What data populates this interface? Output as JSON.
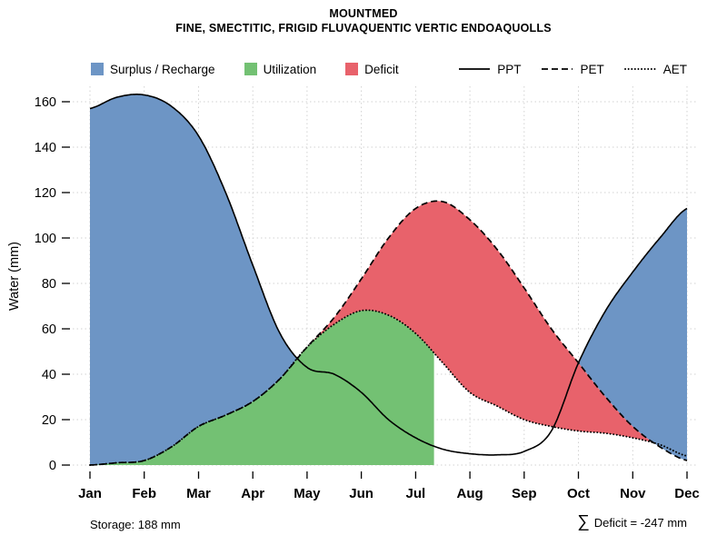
{
  "chart_data": {
    "type": "area",
    "title": "MOUNTMED",
    "subtitle": "FINE, SMECTITIC, FRIGID FLUVAQUENTIC VERTIC ENDOAQUOLLS",
    "ylabel": "Water (mm)",
    "xlabel": "",
    "ylim": [
      0,
      160
    ],
    "grid": true,
    "legend_position": "top",
    "months": [
      "Jan",
      "Feb",
      "Mar",
      "Apr",
      "May",
      "Jun",
      "Jul",
      "Aug",
      "Sep",
      "Oct",
      "Nov",
      "Dec"
    ],
    "y_ticks": [
      0,
      20,
      40,
      60,
      80,
      100,
      120,
      140,
      160
    ],
    "x": [
      1,
      1.5,
      2,
      2.5,
      3,
      3.5,
      4,
      4.5,
      5,
      5.5,
      6,
      6.5,
      7,
      7.5,
      8,
      8.5,
      9,
      9.5,
      10,
      10.5,
      11,
      11.5,
      12
    ],
    "series": [
      {
        "name": "PPT",
        "style": "solid",
        "values": [
          157,
          162,
          163,
          158,
          145,
          120,
          88,
          58,
          43,
          40,
          32,
          20,
          12,
          7,
          5,
          4.5,
          6,
          15,
          45,
          68,
          85,
          100,
          113
        ]
      },
      {
        "name": "PET",
        "style": "dashed",
        "values": [
          0,
          1,
          2,
          8,
          17,
          22,
          28,
          38,
          52,
          65,
          82,
          100,
          113,
          116,
          108,
          95,
          78,
          60,
          45,
          30,
          17,
          8,
          2
        ]
      },
      {
        "name": "AET",
        "style": "dotted",
        "values": [
          0,
          1,
          2,
          8,
          17,
          22,
          28,
          38,
          52,
          62,
          68,
          66,
          58,
          45,
          32,
          26,
          20,
          17,
          15,
          14,
          12,
          9,
          4
        ]
      }
    ],
    "areas": [
      {
        "name": "Surplus / Recharge",
        "rule": "surplus",
        "color": "#6D95C5",
        "between": [
          "PPT",
          "PET"
        ],
        "where": "PPT > PET"
      },
      {
        "name": "Utilization",
        "rule": "utilization",
        "color": "#73C173",
        "under": "AET",
        "x_max": 7.35
      },
      {
        "name": "Deficit",
        "rule": "deficit",
        "color": "#E8626B",
        "between": [
          "PET",
          "AET"
        ],
        "where": "PET > AET"
      }
    ],
    "footer_left": "Storage: 188 mm",
    "footer_right_symbol": "∑",
    "footer_right": "Deficit = -247 mm"
  }
}
